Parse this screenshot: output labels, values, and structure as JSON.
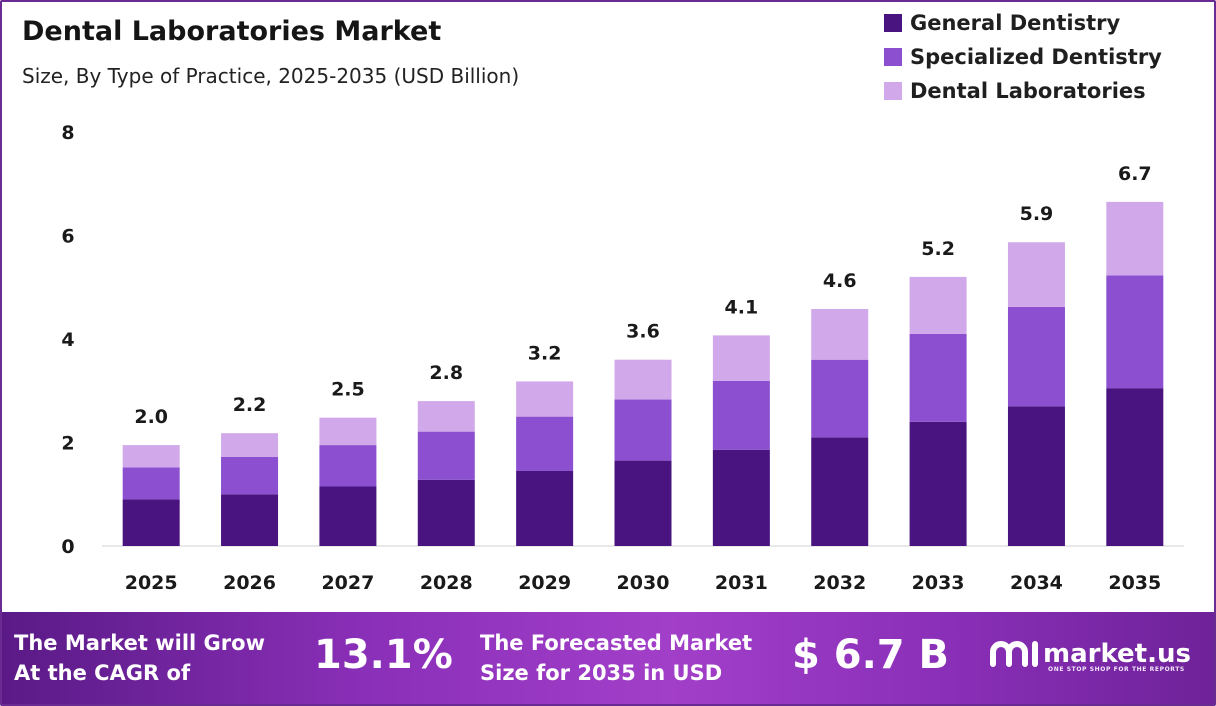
{
  "header": {
    "title": "Dental Laboratories Market",
    "subtitle": "Size, By Type of Practice, 2025-2035 (USD Billion)"
  },
  "legend": [
    {
      "label": "General Dentistry",
      "color": "#4a1480"
    },
    {
      "label": "Specialized Dentistry",
      "color": "#8b4fcf"
    },
    {
      "label": "Dental Laboratories",
      "color": "#d1a8ea"
    }
  ],
  "chart_data": {
    "type": "bar",
    "stacked": true,
    "title": "Dental Laboratories Market",
    "subtitle": "Size, By Type of Practice, 2025-2035 (USD Billion)",
    "categories": [
      "2025",
      "2026",
      "2027",
      "2028",
      "2029",
      "2030",
      "2031",
      "2032",
      "2033",
      "2034",
      "2035"
    ],
    "series": [
      {
        "name": "General Dentistry",
        "color": "#4a1480",
        "values": [
          0.9,
          1.0,
          1.15,
          1.28,
          1.45,
          1.65,
          1.86,
          2.1,
          2.4,
          2.7,
          3.05
        ]
      },
      {
        "name": "Specialized Dentistry",
        "color": "#8b4fcf",
        "values": [
          0.62,
          0.72,
          0.8,
          0.93,
          1.05,
          1.18,
          1.33,
          1.5,
          1.7,
          1.92,
          2.18
        ]
      },
      {
        "name": "Dental Laboratories",
        "color": "#d1a8ea",
        "values": [
          0.43,
          0.46,
          0.53,
          0.59,
          0.68,
          0.77,
          0.88,
          0.98,
          1.1,
          1.25,
          1.42
        ]
      }
    ],
    "totals": [
      "2.0",
      "2.2",
      "2.5",
      "2.8",
      "3.2",
      "3.6",
      "4.1",
      "4.6",
      "5.2",
      "5.9",
      "6.7"
    ],
    "yticks": [
      0,
      2,
      4,
      6,
      8
    ],
    "ylim": [
      0,
      8
    ],
    "grid": false,
    "legend_position": "top-right"
  },
  "banner": {
    "cagr_text": "The Market will Grow\nAt the CAGR of",
    "cagr_value": "13.1%",
    "size_text": "The Forecasted Market\nSize for 2035 in USD",
    "size_value": "$ 6.7 B",
    "brand_name": "market.us",
    "brand_tagline": "ONE STOP SHOP FOR THE REPORTS",
    "brand_icon": "market-us-logo-icon"
  }
}
